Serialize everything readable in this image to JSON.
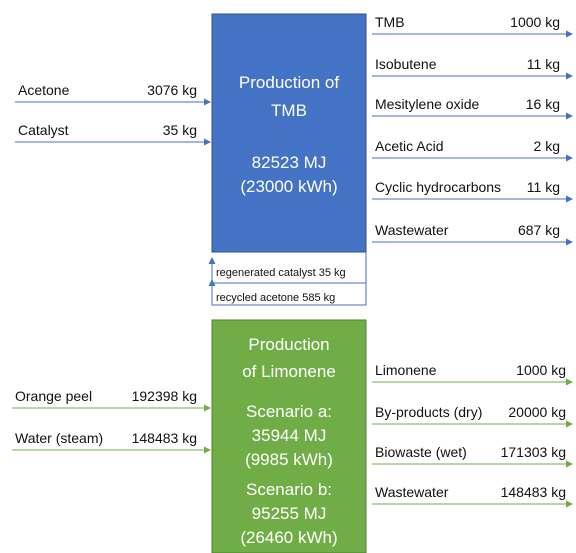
{
  "tmb": {
    "box": [
      "Production of",
      "TMB",
      "",
      "82523 MJ",
      "(23000 kWh)"
    ],
    "inputs": [
      {
        "name": "Acetone",
        "amount": "3076 kg"
      },
      {
        "name": "Catalyst",
        "amount": "35 kg"
      }
    ],
    "outputs": [
      {
        "name": "TMB",
        "amount": "1000 kg"
      },
      {
        "name": "Isobutene",
        "amount": "11 kg"
      },
      {
        "name": "Mesitylene oxide",
        "amount": "16 kg"
      },
      {
        "name": "Acetic Acid",
        "amount": "2 kg"
      },
      {
        "name": "Cyclic hydrocarbons",
        "amount": "11 kg"
      },
      {
        "name": "Wastewater",
        "amount": "687 kg"
      }
    ],
    "recycle": [
      "regenerated catalyst 35 kg",
      "recycled acetone 585 kg"
    ]
  },
  "limonene": {
    "box": [
      "Production",
      "of Limonene",
      "Scenario a:",
      "35944 MJ",
      "(9985 kWh)",
      "Scenario b:",
      "95255 MJ",
      "(26460 kWh)"
    ],
    "inputs": [
      {
        "name": "Orange peel",
        "amount": "192398 kg"
      },
      {
        "name": "Water (steam)",
        "amount": "148483 kg"
      }
    ],
    "outputs": [
      {
        "name": "Limonene",
        "amount": "1000 kg"
      },
      {
        "name": "By-products (dry)",
        "amount": "20000 kg"
      },
      {
        "name": "Biowaste (wet)",
        "amount": "171303 kg"
      },
      {
        "name": "Wastewater",
        "amount": "148483 kg"
      }
    ]
  }
}
